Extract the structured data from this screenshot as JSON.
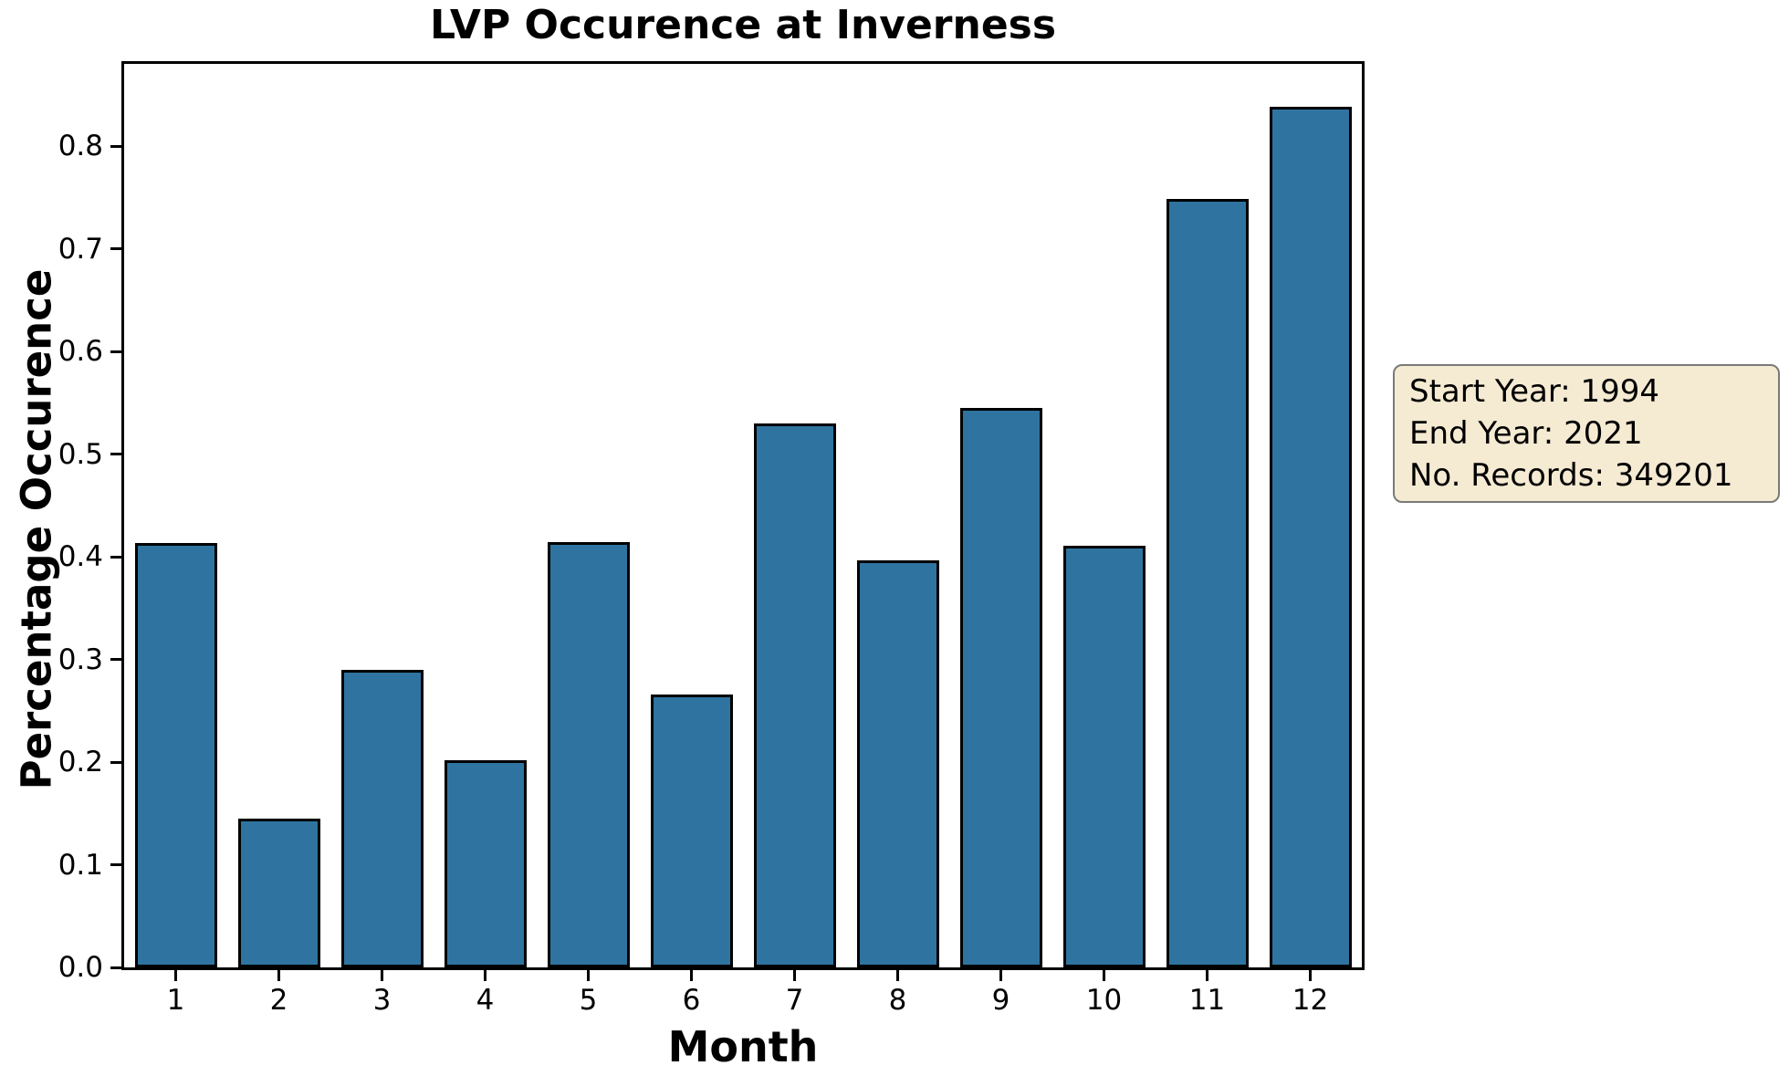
{
  "title": "LVP Occurence at Inverness",
  "info_box": {
    "lines": [
      "Start Year: 1994",
      "End Year: 2021",
      "No. Records: 349201"
    ],
    "background_color": "#F5EAD2",
    "border_color": "#7A7A7A"
  },
  "chart_data": {
    "type": "bar",
    "title": "LVP Occurence at Inverness",
    "xlabel": "Month",
    "ylabel": "Percentage Occurence",
    "categories": [
      "1",
      "2",
      "3",
      "4",
      "5",
      "6",
      "7",
      "8",
      "9",
      "10",
      "11",
      "12"
    ],
    "values": [
      0.413,
      0.145,
      0.29,
      0.202,
      0.414,
      0.266,
      0.53,
      0.396,
      0.545,
      0.411,
      0.748,
      0.838
    ],
    "y_ticks": [
      "0.0",
      "0.1",
      "0.2",
      "0.3",
      "0.4",
      "0.5",
      "0.6",
      "0.7",
      "0.8"
    ],
    "ylim": [
      0,
      0.88
    ],
    "grid": false,
    "legend": null,
    "bar_color": "#2F74A0",
    "bar_edge_color": "#000000",
    "annotation": "Start Year: 1994 / End Year: 2021 / No. Records: 349201"
  }
}
